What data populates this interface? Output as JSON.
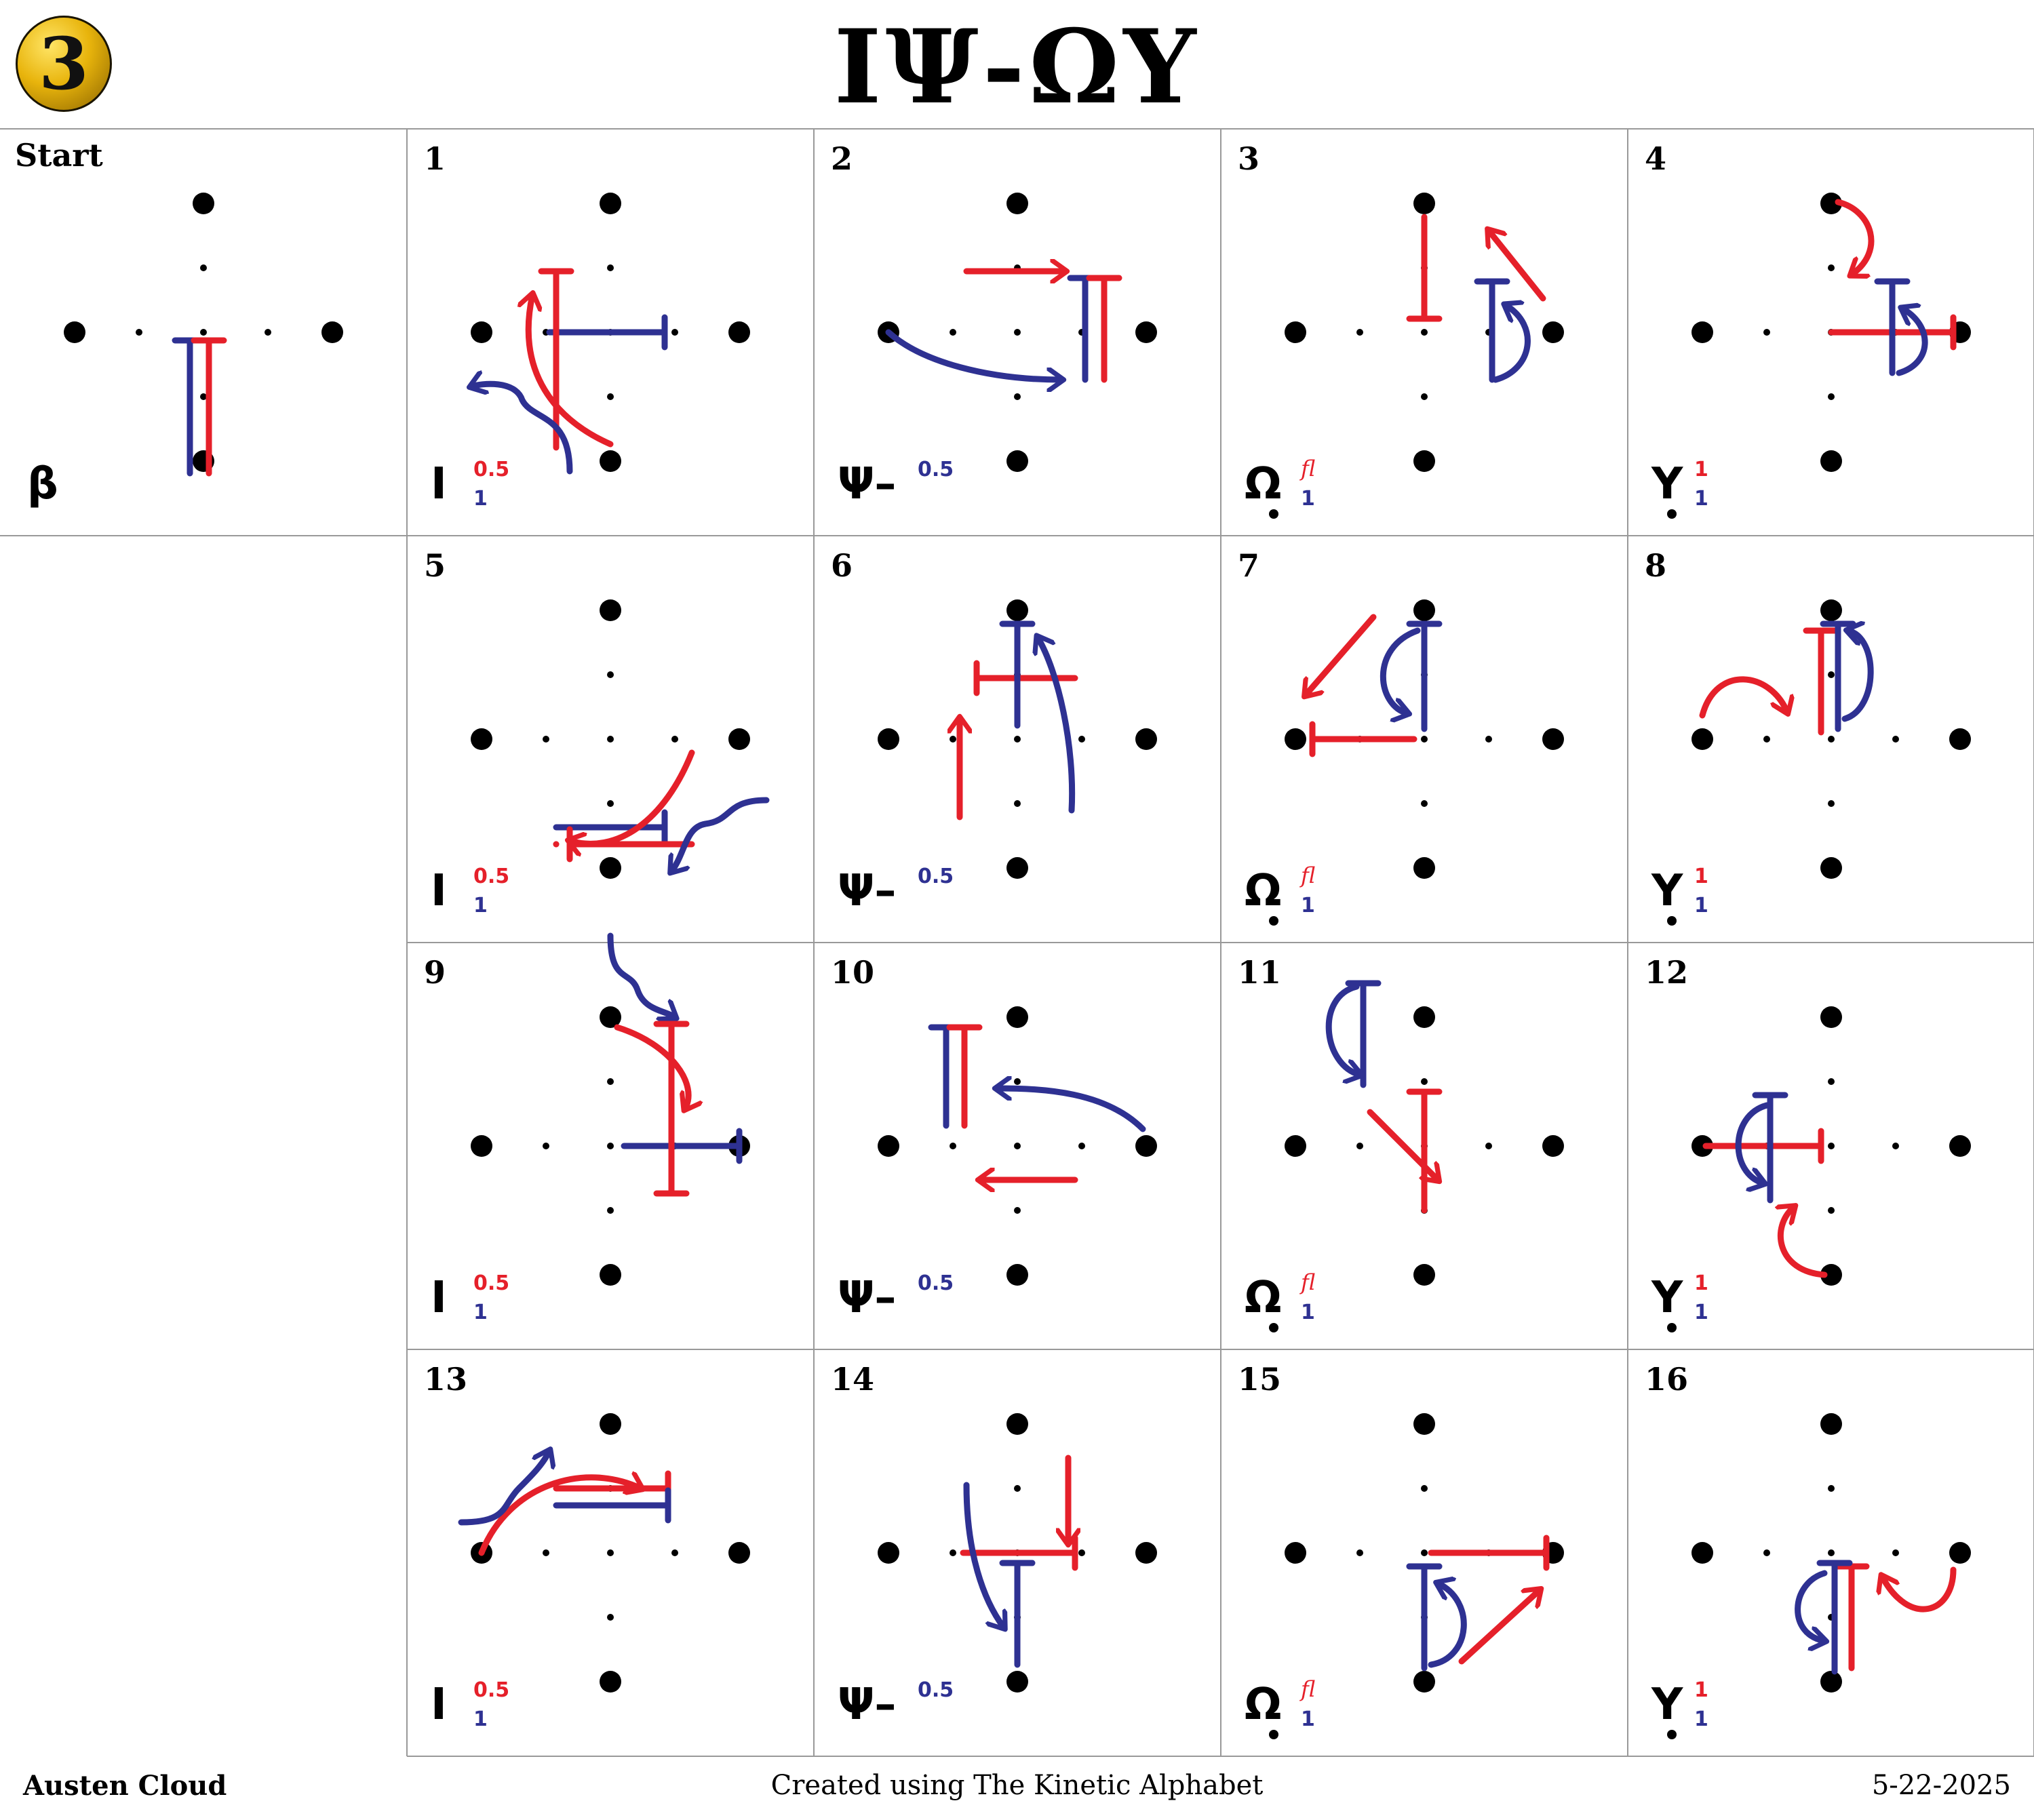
{
  "badge": "3",
  "title": "ΙΨ-ΩΥ",
  "start": {
    "label": "Start",
    "symbol": "β"
  },
  "cells": [
    {
      "label": "1",
      "symbol": "I",
      "sup": "0.5",
      "sub": "1"
    },
    {
      "label": "2",
      "symbol": "Ψ–",
      "sup": "",
      "sub": "",
      "sup_blue": "0.5"
    },
    {
      "label": "3",
      "symbol": "Ω",
      "sup": "fl",
      "sub": "1"
    },
    {
      "label": "4",
      "symbol": "Y",
      "sup": "1",
      "sub": "1"
    },
    {
      "label": "5",
      "symbol": "I",
      "sup": "0.5",
      "sub": "1"
    },
    {
      "label": "6",
      "symbol": "Ψ–",
      "sup": "",
      "sub": "",
      "sup_blue": "0.5"
    },
    {
      "label": "7",
      "symbol": "Ω",
      "sup": "fl",
      "sub": "1"
    },
    {
      "label": "8",
      "symbol": "Y",
      "sup": "1",
      "sub": "1"
    },
    {
      "label": "9",
      "symbol": "I",
      "sup": "0.5",
      "sub": "1"
    },
    {
      "label": "10",
      "symbol": "Ψ–",
      "sup": "",
      "sub": "",
      "sup_blue": "0.5"
    },
    {
      "label": "11",
      "symbol": "Ω",
      "sup": "fl",
      "sub": "1"
    },
    {
      "label": "12",
      "symbol": "Y",
      "sup": "1",
      "sub": "1"
    },
    {
      "label": "13",
      "symbol": "I",
      "sup": "0.5",
      "sub": "1"
    },
    {
      "label": "14",
      "symbol": "Ψ–",
      "sup": "",
      "sub": "",
      "sup_blue": "0.5"
    },
    {
      "label": "15",
      "symbol": "Ω",
      "sup": "fl",
      "sub": "1"
    },
    {
      "label": "16",
      "symbol": "Y",
      "sup": "1",
      "sub": "1"
    }
  ],
  "footer": {
    "author": "Austen Cloud",
    "credit": "Created using The Kinetic Alphabet",
    "date": "5-22-2025"
  },
  "colors": {
    "red": "#e5202a",
    "blue": "#2e3192",
    "grid": "#999999"
  }
}
